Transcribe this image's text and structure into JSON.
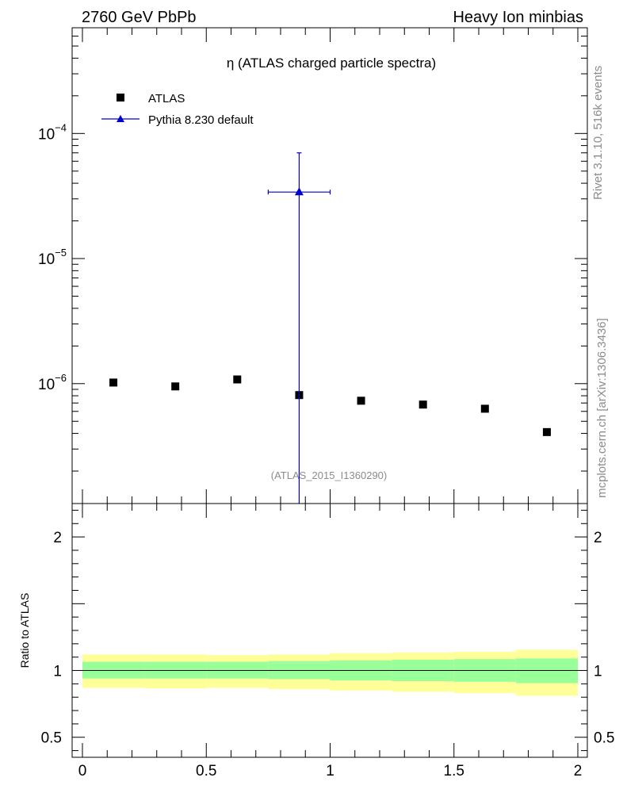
{
  "header": {
    "left": "2760 GeV PbPb",
    "right": "Heavy Ion minbias"
  },
  "side_texts": {
    "top": "Rivet 3.1.10,  516k events",
    "bottom": "mcplots.cern.ch [arXiv:1306.3436]"
  },
  "chart_data": [
    {
      "type": "scatter",
      "title": "η (ATLAS charged particle spectra)",
      "watermark": "(ATLAS_2015_I1360290)",
      "xlim": [
        0,
        2
      ],
      "ylim": [
        1.1e-07,
        0.0007
      ],
      "yscale": "log",
      "ytick_labels": [
        {
          "value": 1e-06,
          "base": "10",
          "exp": "−6"
        },
        {
          "value": 1e-05,
          "base": "10",
          "exp": "−5"
        },
        {
          "value": 0.0001,
          "base": "10",
          "exp": "−4"
        }
      ],
      "legend_position": "top-left",
      "series": [
        {
          "name": "ATLAS",
          "marker": "square",
          "color": "#000000",
          "x": [
            0.125,
            0.375,
            0.625,
            0.875,
            1.125,
            1.375,
            1.625,
            1.875
          ],
          "y": [
            1.02e-06,
            9.5e-07,
            1.08e-06,
            8.1e-07,
            7.3e-07,
            6.8e-07,
            6.3e-07,
            4.1e-07
          ]
        },
        {
          "name": "Pythia 8.230 default",
          "marker": "triangle",
          "color": "#0000cc",
          "points": [
            {
              "x": 0.875,
              "y": 3.4e-05,
              "xerr": [
                0.75,
                1.0
              ],
              "yerr": [
                1e-09,
                7e-05
              ]
            }
          ]
        }
      ]
    },
    {
      "type": "band",
      "ylabel": "Ratio to ATLAS",
      "xlim": [
        0,
        2
      ],
      "ylim": [
        0.35,
        2.25
      ],
      "xticks": [
        0,
        0.5,
        1,
        1.5,
        2
      ],
      "xtick_labels": [
        "0",
        "0.5",
        "1",
        "1.5",
        "2"
      ],
      "yticks": [
        0.5,
        1,
        2
      ],
      "ytick_labels": [
        "0.5",
        "1",
        "2"
      ],
      "reference_line": 1,
      "bins": [
        0,
        0.25,
        0.5,
        0.75,
        1.0,
        1.25,
        1.5,
        1.75,
        2.0
      ],
      "outer_band": {
        "color": "#ffff99",
        "low": [
          0.87,
          0.865,
          0.87,
          0.86,
          0.85,
          0.84,
          0.83,
          0.81
        ],
        "high": [
          1.12,
          1.12,
          1.115,
          1.12,
          1.13,
          1.135,
          1.14,
          1.155
        ]
      },
      "inner_band": {
        "color": "#99ff99",
        "low": [
          0.94,
          0.94,
          0.94,
          0.935,
          0.925,
          0.92,
          0.915,
          0.905
        ],
        "high": [
          1.065,
          1.065,
          1.065,
          1.07,
          1.075,
          1.08,
          1.085,
          1.09
        ]
      }
    }
  ]
}
